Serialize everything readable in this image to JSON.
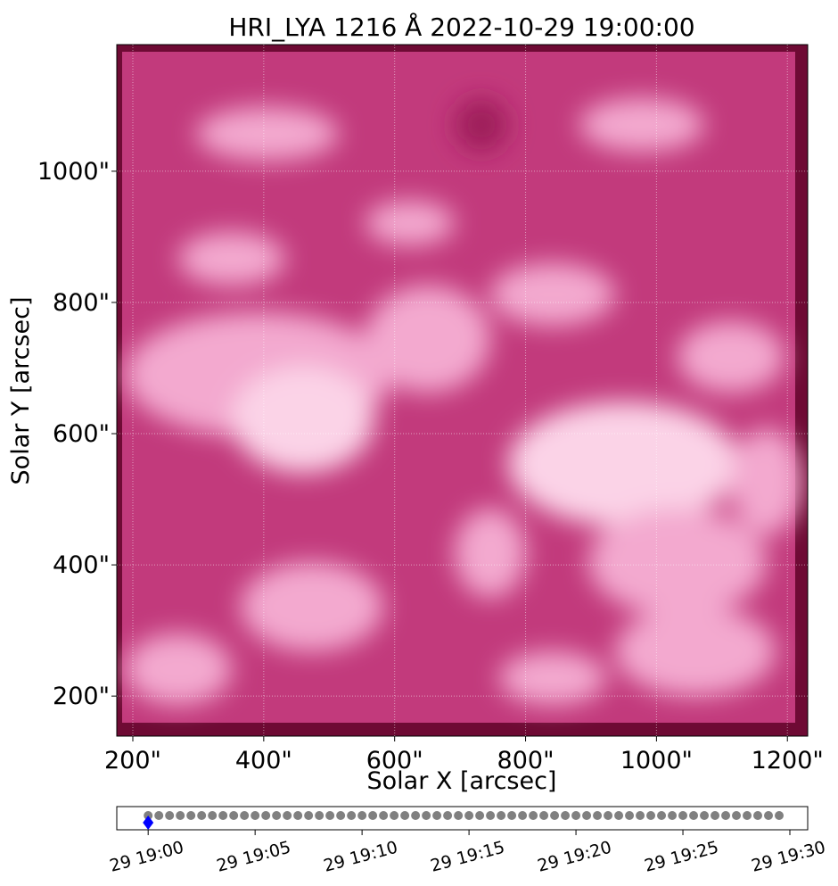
{
  "chart_data": [
    {
      "type": "image",
      "title": "HRI_LYA 1216 Å 2022-10-29 19:00:00",
      "xlabel": "Solar X [arcsec]",
      "ylabel": "Solar Y [arcsec]",
      "xlim": [
        175.5,
        1231
      ],
      "ylim": [
        139,
        1193
      ],
      "xticks": [
        {
          "value": 200,
          "label": "200\""
        },
        {
          "value": 400,
          "label": "400\""
        },
        {
          "value": 600,
          "label": "600\""
        },
        {
          "value": 800,
          "label": "800\""
        },
        {
          "value": 1000,
          "label": "1000\""
        },
        {
          "value": 1200,
          "label": "1200\""
        }
      ],
      "yticks": [
        {
          "value": 200,
          "label": "200\""
        },
        {
          "value": 400,
          "label": "400\""
        },
        {
          "value": 600,
          "label": "600\""
        },
        {
          "value": 800,
          "label": "800\""
        },
        {
          "value": 1000,
          "label": "1000\""
        }
      ],
      "grid": true
    },
    {
      "type": "timeline",
      "xlim": [
        "2022-10-29T18:58:32",
        "2022-10-29T19:30:50"
      ],
      "xticks": [
        {
          "value": "2022-10-29T19:00:00",
          "label": "29 19:00"
        },
        {
          "value": "2022-10-29T19:05:00",
          "label": "29 19:05"
        },
        {
          "value": "2022-10-29T19:10:00",
          "label": "29 19:10"
        },
        {
          "value": "2022-10-29T19:15:00",
          "label": "29 19:15"
        },
        {
          "value": "2022-10-29T19:20:00",
          "label": "29 19:20"
        },
        {
          "value": "2022-10-29T19:25:00",
          "label": "29 19:25"
        },
        {
          "value": "2022-10-29T19:30:00",
          "label": "29 19:30"
        }
      ],
      "series": [
        {
          "color": "#808080",
          "x": [
            "2022-10-29T19:00:00",
            "2022-10-29T19:00:30",
            "2022-10-29T19:01:00",
            "2022-10-29T19:01:30",
            "2022-10-29T19:02:00",
            "2022-10-29T19:02:30",
            "2022-10-29T19:03:00",
            "2022-10-29T19:03:30",
            "2022-10-29T19:04:00",
            "2022-10-29T19:04:30",
            "2022-10-29T19:05:00",
            "2022-10-29T19:05:30",
            "2022-10-29T19:06:00",
            "2022-10-29T19:06:30",
            "2022-10-29T19:07:00",
            "2022-10-29T19:07:30",
            "2022-10-29T19:08:00",
            "2022-10-29T19:08:30",
            "2022-10-29T19:09:00",
            "2022-10-29T19:09:30",
            "2022-10-29T19:10:00",
            "2022-10-29T19:10:30",
            "2022-10-29T19:11:00",
            "2022-10-29T19:11:30",
            "2022-10-29T19:12:00",
            "2022-10-29T19:12:30",
            "2022-10-29T19:13:00",
            "2022-10-29T19:13:30",
            "2022-10-29T19:14:00",
            "2022-10-29T19:14:30",
            "2022-10-29T19:15:00",
            "2022-10-29T19:15:30",
            "2022-10-29T19:16:00",
            "2022-10-29T19:16:30",
            "2022-10-29T19:17:00",
            "2022-10-29T19:17:30",
            "2022-10-29T19:18:00",
            "2022-10-29T19:18:30",
            "2022-10-29T19:19:00",
            "2022-10-29T19:19:30",
            "2022-10-29T19:20:00",
            "2022-10-29T19:20:30",
            "2022-10-29T19:21:00",
            "2022-10-29T19:21:30",
            "2022-10-29T19:22:00",
            "2022-10-29T19:22:30",
            "2022-10-29T19:23:00",
            "2022-10-29T19:23:30",
            "2022-10-29T19:24:00",
            "2022-10-29T19:24:30",
            "2022-10-29T19:25:00",
            "2022-10-29T19:25:30",
            "2022-10-29T19:26:00",
            "2022-10-29T19:26:30",
            "2022-10-29T19:27:00",
            "2022-10-29T19:27:30",
            "2022-10-29T19:28:00",
            "2022-10-29T19:28:30",
            "2022-10-29T19:29:00",
            "2022-10-29T19:29:30"
          ]
        }
      ],
      "current": {
        "x": "2022-10-29T19:00:00",
        "color": "#0000ff"
      }
    }
  ]
}
